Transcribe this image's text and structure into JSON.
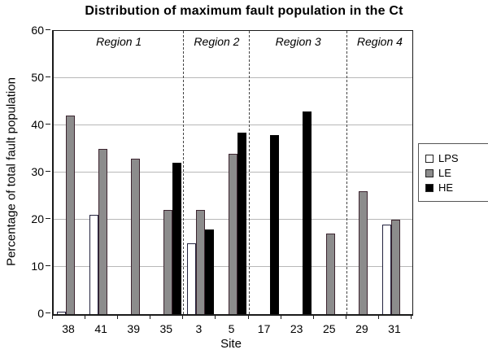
{
  "title": "Distribution of maximum fault population in the Ct",
  "chart_data": {
    "type": "bar",
    "categories": [
      "38",
      "41",
      "39",
      "35",
      "3",
      "5",
      "17",
      "23",
      "25",
      "29",
      "31"
    ],
    "series": [
      {
        "name": "LPS",
        "color": "#ffffff",
        "border": "#23233f",
        "values": [
          0.5,
          21,
          null,
          null,
          15,
          null,
          null,
          null,
          null,
          null,
          19
        ]
      },
      {
        "name": "LE",
        "color": "#8c8c8c",
        "border": "#3d2530",
        "values": [
          42,
          35,
          33,
          22,
          22,
          34,
          null,
          null,
          17,
          26,
          20
        ]
      },
      {
        "name": "HE",
        "color": "#000000",
        "border": "#000000",
        "values": [
          null,
          null,
          null,
          32,
          18,
          38.5,
          38,
          43,
          null,
          null,
          null
        ]
      }
    ],
    "regions": [
      {
        "label": "Region 1",
        "span": [
          0,
          4
        ]
      },
      {
        "label": "Region 2",
        "span": [
          4,
          6
        ]
      },
      {
        "label": "Region 3",
        "span": [
          6,
          9
        ]
      },
      {
        "label": "Region 4",
        "span": [
          9,
          11
        ]
      }
    ],
    "title": "Distribution of maximum fault population in the Ct",
    "xlabel": "Site",
    "ylabel": "Percentage of total fault population",
    "ylim": [
      0,
      60
    ],
    "ytick_step": 10,
    "grid": true,
    "legend_position": "right",
    "colors": {
      "grid": "#b8b8b8",
      "axis": "#1a1a1a",
      "divider": "#444444"
    }
  }
}
